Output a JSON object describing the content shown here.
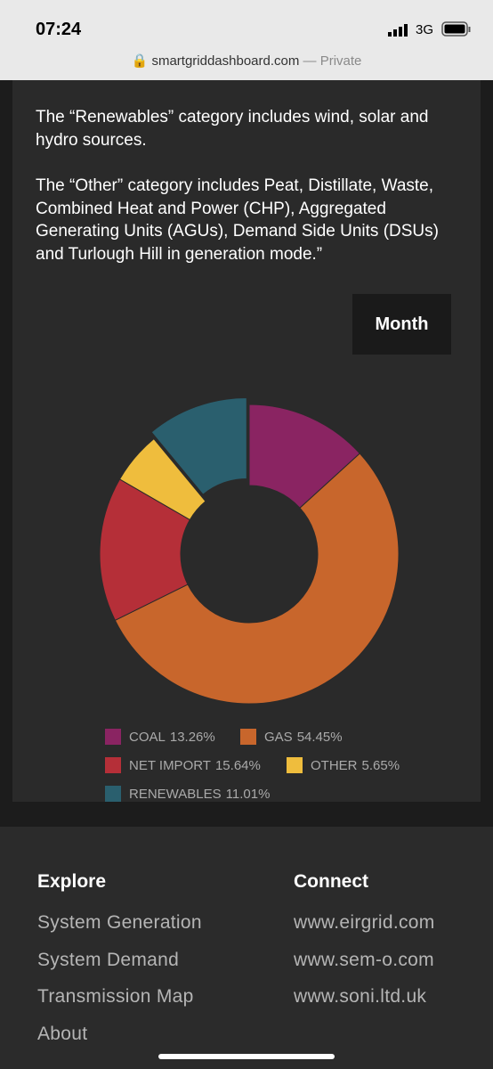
{
  "status": {
    "time": "07:24",
    "network": "3G"
  },
  "url": {
    "domain": "smartgriddashboard.com",
    "suffix": "— Private"
  },
  "paragraphs": [
    "The “Renewables” category includes wind, solar and hydro sources.",
    "The “Other” category includes Peat, Distillate, Waste, Combined Heat and Power (CHP), Aggregated Generating Units (AGUs), Demand Side Units (DSUs) and Turlough Hill in generation mode.”"
  ],
  "button": "Month",
  "chart_data": {
    "type": "donut",
    "categories": [
      "COAL",
      "GAS",
      "NET IMPORT",
      "OTHER",
      "RENEWABLES"
    ],
    "values": [
      13.26,
      54.45,
      15.64,
      5.65,
      11.01
    ],
    "value_labels": [
      "13.26%",
      "54.45%",
      "15.64%",
      "5.65%",
      "11.01%"
    ],
    "colors": [
      "#8a2462",
      "#c8662c",
      "#b52f38",
      "#efbd3d",
      "#2a5f6e"
    ],
    "exploded": "RENEWABLES"
  },
  "footer": [
    {
      "title": "Explore",
      "links": [
        "System Generation",
        "System Demand",
        "Transmission Map",
        "About"
      ]
    },
    {
      "title": "Connect",
      "links": [
        "www.eirgrid.com",
        "www.sem-o.com",
        "www.soni.ltd.uk"
      ]
    }
  ]
}
